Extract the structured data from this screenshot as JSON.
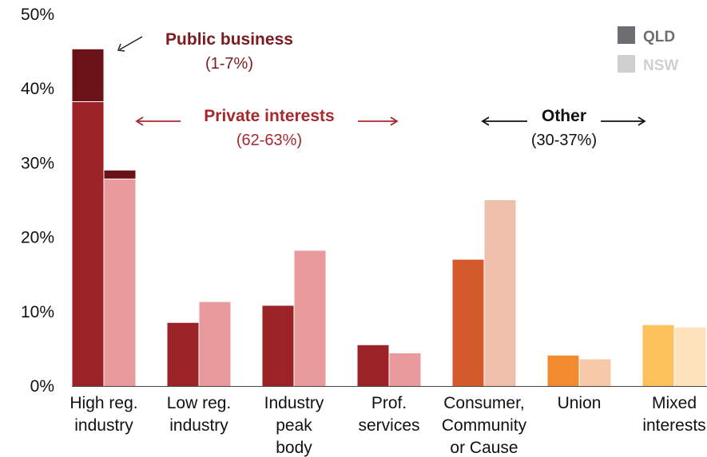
{
  "chart_data": {
    "type": "bar",
    "categories": [
      [
        "High reg.",
        "industry"
      ],
      [
        "Low reg.",
        "industry"
      ],
      [
        "Industry",
        "peak",
        "body"
      ],
      [
        "Prof.",
        "services"
      ],
      [
        "Consumer,",
        "Community",
        "or Cause"
      ],
      [
        "Union"
      ],
      [
        "Mixed",
        "interests"
      ]
    ],
    "ylim": [
      0,
      50
    ],
    "yticks": [
      "0%",
      "10%",
      "20%",
      "30%",
      "40%",
      "50%"
    ],
    "grid": false,
    "legend_position": "top-right",
    "series": [
      {
        "name": "QLD",
        "values": [
          45.3,
          8.5,
          10.8,
          5.5,
          17.0,
          4.1,
          8.2
        ],
        "public_business_part": [
          7.1,
          0,
          0,
          0,
          0,
          0,
          0
        ]
      },
      {
        "name": "NSW",
        "values": [
          29.0,
          11.3,
          18.2,
          4.4,
          25.0,
          3.6,
          7.9
        ],
        "public_business_part": [
          1.2,
          0,
          0,
          0,
          0,
          0,
          0
        ]
      }
    ],
    "colors": {
      "qld": [
        "#9b2226",
        "#9b2226",
        "#9b2226",
        "#9b2226",
        "#d45a2c",
        "#f28b30",
        "#fcc15c"
      ],
      "nsw": [
        "#e99a9c",
        "#e99a9c",
        "#e99a9c",
        "#e99a9c",
        "#eebfaa",
        "#f7c9a9",
        "#fde3bb"
      ],
      "public_business": "#6a1217",
      "legend_qld": "#6d6e72",
      "legend_nsw": "#cfd0d2"
    },
    "annotations": {
      "public_business": {
        "title": "Public business",
        "sub": "(1-7%)",
        "color": "#7a1c1f"
      },
      "private_interests": {
        "title": "Private interests",
        "sub": "(62-63%)",
        "color": "#a52a2e"
      },
      "other": {
        "title": "Other",
        "sub": "(30-37%)",
        "color": "#111111"
      }
    }
  }
}
